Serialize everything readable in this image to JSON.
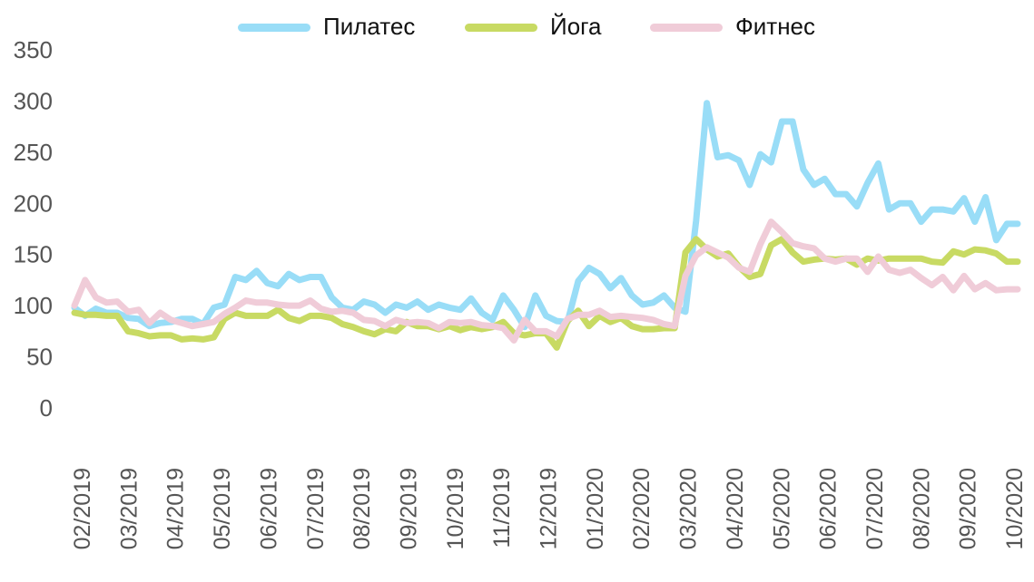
{
  "chart_data": {
    "type": "line",
    "legend_position": "top",
    "grid": false,
    "ylim": [
      0,
      350
    ],
    "yticks": [
      0,
      50,
      100,
      150,
      200,
      250,
      300,
      350
    ],
    "xticks": [
      "02/2019",
      "03/2019",
      "04/2019",
      "05/2019",
      "06/2019",
      "07/2019",
      "08/2019",
      "09/2019",
      "10/2019",
      "11/2019",
      "12/2019",
      "01/2020",
      "02/2020",
      "03/2020",
      "04/2020",
      "05/2020",
      "06/2020",
      "07/2020",
      "08/2020",
      "09/2020",
      "10/2020"
    ],
    "n_points": 89,
    "series": [
      {
        "name": "Пилатес",
        "color": "#99DDF7",
        "values": [
          98,
          90,
          97,
          93,
          93,
          88,
          87,
          80,
          83,
          84,
          87,
          87,
          82,
          98,
          101,
          128,
          125,
          134,
          122,
          119,
          131,
          125,
          128,
          128,
          108,
          98,
          96,
          104,
          101,
          93,
          101,
          98,
          104,
          96,
          101,
          98,
          96,
          107,
          93,
          86,
          110,
          96,
          79,
          110,
          90,
          85,
          84,
          124,
          137,
          131,
          117,
          127,
          110,
          101,
          103,
          110,
          98,
          94,
          183,
          298,
          245,
          247,
          242,
          218,
          248,
          240,
          280,
          280,
          233,
          218,
          224,
          209,
          209,
          197,
          220,
          239,
          194,
          200,
          200,
          182,
          194,
          194,
          192,
          205,
          182,
          206,
          164,
          180,
          180
        ]
      },
      {
        "name": "Йога",
        "color": "#C8DA63",
        "values": [
          93,
          91,
          91,
          90,
          90,
          75,
          73,
          70,
          71,
          71,
          67,
          68,
          67,
          69,
          87,
          93,
          90,
          90,
          90,
          96,
          88,
          85,
          90,
          90,
          88,
          82,
          79,
          75,
          72,
          77,
          75,
          84,
          80,
          80,
          77,
          80,
          76,
          79,
          77,
          79,
          84,
          73,
          71,
          73,
          73,
          59,
          85,
          95,
          80,
          90,
          84,
          88,
          80,
          77,
          77,
          78,
          78,
          152,
          165,
          155,
          148,
          151,
          138,
          128,
          131,
          159,
          165,
          152,
          143,
          145,
          146,
          145,
          146,
          140,
          146,
          144,
          146,
          146,
          146,
          146,
          143,
          142,
          153,
          150,
          155,
          154,
          151,
          143,
          143
        ]
      },
      {
        "name": "Фитнес",
        "color": "#F0CCD8",
        "values": [
          100,
          125,
          108,
          103,
          104,
          94,
          96,
          83,
          93,
          86,
          83,
          80,
          82,
          84,
          92,
          98,
          105,
          103,
          103,
          101,
          100,
          100,
          105,
          97,
          94,
          95,
          93,
          86,
          85,
          80,
          86,
          83,
          84,
          83,
          78,
          84,
          83,
          84,
          81,
          80,
          78,
          66,
          86,
          75,
          75,
          70,
          87,
          91,
          91,
          95,
          89,
          90,
          89,
          88,
          86,
          82,
          80,
          129,
          149,
          157,
          152,
          147,
          137,
          133,
          160,
          182,
          172,
          161,
          158,
          156,
          146,
          143,
          146,
          146,
          133,
          148,
          135,
          132,
          135,
          127,
          120,
          128,
          115,
          129,
          116,
          122,
          115,
          116,
          116
        ]
      }
    ]
  }
}
